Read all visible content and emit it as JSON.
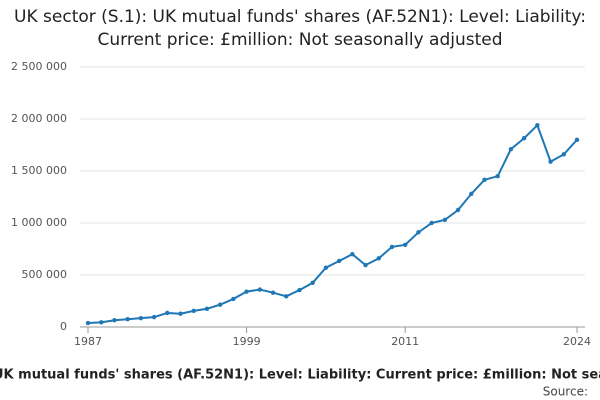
{
  "chart_data": {
    "type": "line",
    "title": "UK sector (S.1): UK mutual funds' shares (AF.52N1): Level: Liability: Current price: £million: Not seasonally adjusted",
    "source_label": "Source:",
    "x": [
      1987,
      1988,
      1989,
      1990,
      1991,
      1992,
      1993,
      1994,
      1995,
      1996,
      1997,
      1998,
      1999,
      2000,
      2001,
      2002,
      2003,
      2004,
      2005,
      2006,
      2007,
      2008,
      2009,
      2010,
      2011,
      2012,
      2013,
      2014,
      2015,
      2016,
      2017,
      2018,
      2019,
      2020,
      2021,
      2022,
      2023,
      2024
    ],
    "series": [
      {
        "color": "#1f77b4",
        "values": [
          38000,
          45000,
          65000,
          75000,
          85000,
          95000,
          135000,
          128000,
          155000,
          175000,
          215000,
          270000,
          340000,
          360000,
          330000,
          295000,
          355000,
          425000,
          570000,
          635000,
          700000,
          595000,
          660000,
          770000,
          790000,
          910000,
          1000000,
          1030000,
          1125000,
          1280000,
          1415000,
          1450000,
          1710000,
          1815000,
          1940000,
          1590000,
          1660000,
          1800000
        ]
      }
    ],
    "xlim": [
      1987,
      2024
    ],
    "xticks": [
      1987,
      1999,
      2011,
      2024
    ],
    "ylim": [
      0,
      2500000
    ],
    "yticks": [
      0,
      {
        "value": 500000,
        "label": "500 000"
      },
      {
        "value": 1000000,
        "label": "1 000 000"
      },
      {
        "value": 1500000,
        "label": "1 500 000"
      },
      {
        "value": 2000000,
        "label": "2 000 000"
      },
      {
        "value": 2500000,
        "label": "2 500 000"
      }
    ],
    "grid": true
  }
}
